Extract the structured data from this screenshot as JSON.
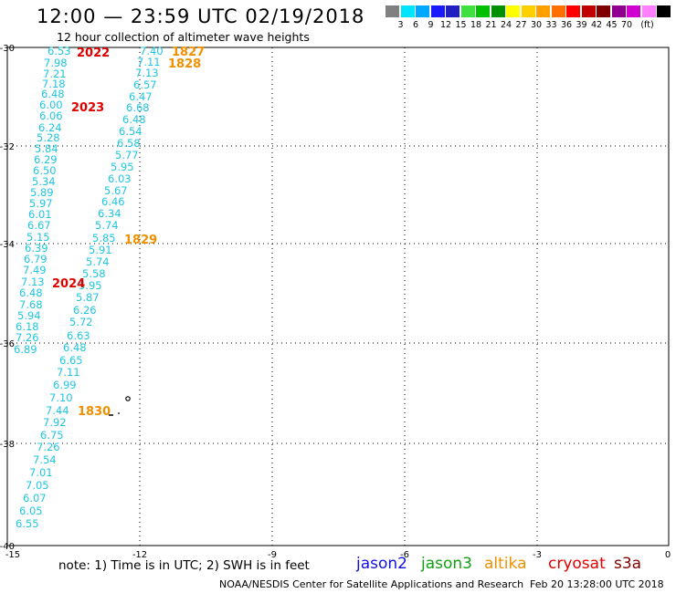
{
  "header": {
    "title": "12:00 — 23:59 UTC 02/19/2018",
    "subtitle": "12 hour collection of altimeter wave heights"
  },
  "colorbar": {
    "swatches": [
      "#808080",
      "#00e5ff",
      "#00a8ff",
      "#1a1aff",
      "#2020c0",
      "#40e040",
      "#00c000",
      "#009000",
      "#ffff00",
      "#ffd000",
      "#ffa000",
      "#ff7000",
      "#ff0000",
      "#c00000",
      "#800000",
      "#900090",
      "#d000d0",
      "#ff80ff",
      "#000000"
    ],
    "labels": [
      "3",
      "6",
      "9",
      "12",
      "15",
      "18",
      "21",
      "24",
      "27",
      "30",
      "33",
      "36",
      "39",
      "42",
      "45",
      "70",
      "(ft)"
    ]
  },
  "map": {
    "lon_ticks": [
      "-15",
      "-12",
      "-9",
      "-6",
      "-3",
      "0"
    ],
    "lat_ticks": [
      "-30",
      "-32",
      "-34",
      "-36",
      "-38",
      "-40"
    ],
    "track1": [
      "6.53",
      "7.98",
      "7.21",
      "7.18",
      "6.48",
      "6.00",
      "6.06",
      "6.24",
      "5.28",
      "5.84",
      "6.29",
      "6.50",
      "5.34",
      "5.89",
      "5.97",
      "6.01",
      "6.67",
      "5.15",
      "6.39",
      "6.79",
      "7.49",
      "7.13",
      "6.48",
      "7.68",
      "5.94",
      "6.18",
      "7.26",
      "6.89"
    ],
    "track2": [
      "7.40",
      "7.11",
      "7.13",
      "6.57",
      "6.47",
      "6.68",
      "6.48",
      "6.54",
      "6.58",
      "5.77",
      "5.95",
      "6.03",
      "5.67",
      "6.46",
      "6.34",
      "5.74",
      "5.85",
      "5.91",
      "5.74",
      "5.58",
      "5.95",
      "5.87",
      "6.26",
      "5.72",
      "6.63",
      "6.48",
      "6.65",
      "7.11",
      "6.99",
      "7.10",
      "7.44",
      "7.92",
      "6.75",
      "7.26",
      "7.54",
      "7.01",
      "7.05",
      "6.07",
      "6.05",
      "6.55"
    ],
    "pass_labels": [
      {
        "text": "2022",
        "color": "#e00000"
      },
      {
        "text": "2023",
        "color": "#e00000"
      },
      {
        "text": "2024",
        "color": "#e00000"
      },
      {
        "text": "1827",
        "color": "#f09000"
      },
      {
        "text": "1828",
        "color": "#f09000"
      },
      {
        "text": "1829",
        "color": "#f09000"
      },
      {
        "text": "1830",
        "color": "#f09000"
      }
    ]
  },
  "footer": {
    "note": "note:  1) Time is in UTC;  2) SWH is in feet",
    "legend": [
      {
        "name": "jason2",
        "color": "#1010e0"
      },
      {
        "name": "jason3",
        "color": "#10a010"
      },
      {
        "name": "altika",
        "color": "#f09000"
      },
      {
        "name": "cryosat",
        "color": "#e00000"
      },
      {
        "name": "s3a",
        "color": "#800000"
      }
    ],
    "credit": "NOAA/NESDIS Center for Satellite Applications and Research",
    "generated": "Feb 20 13:28:00 UTC 2018"
  }
}
